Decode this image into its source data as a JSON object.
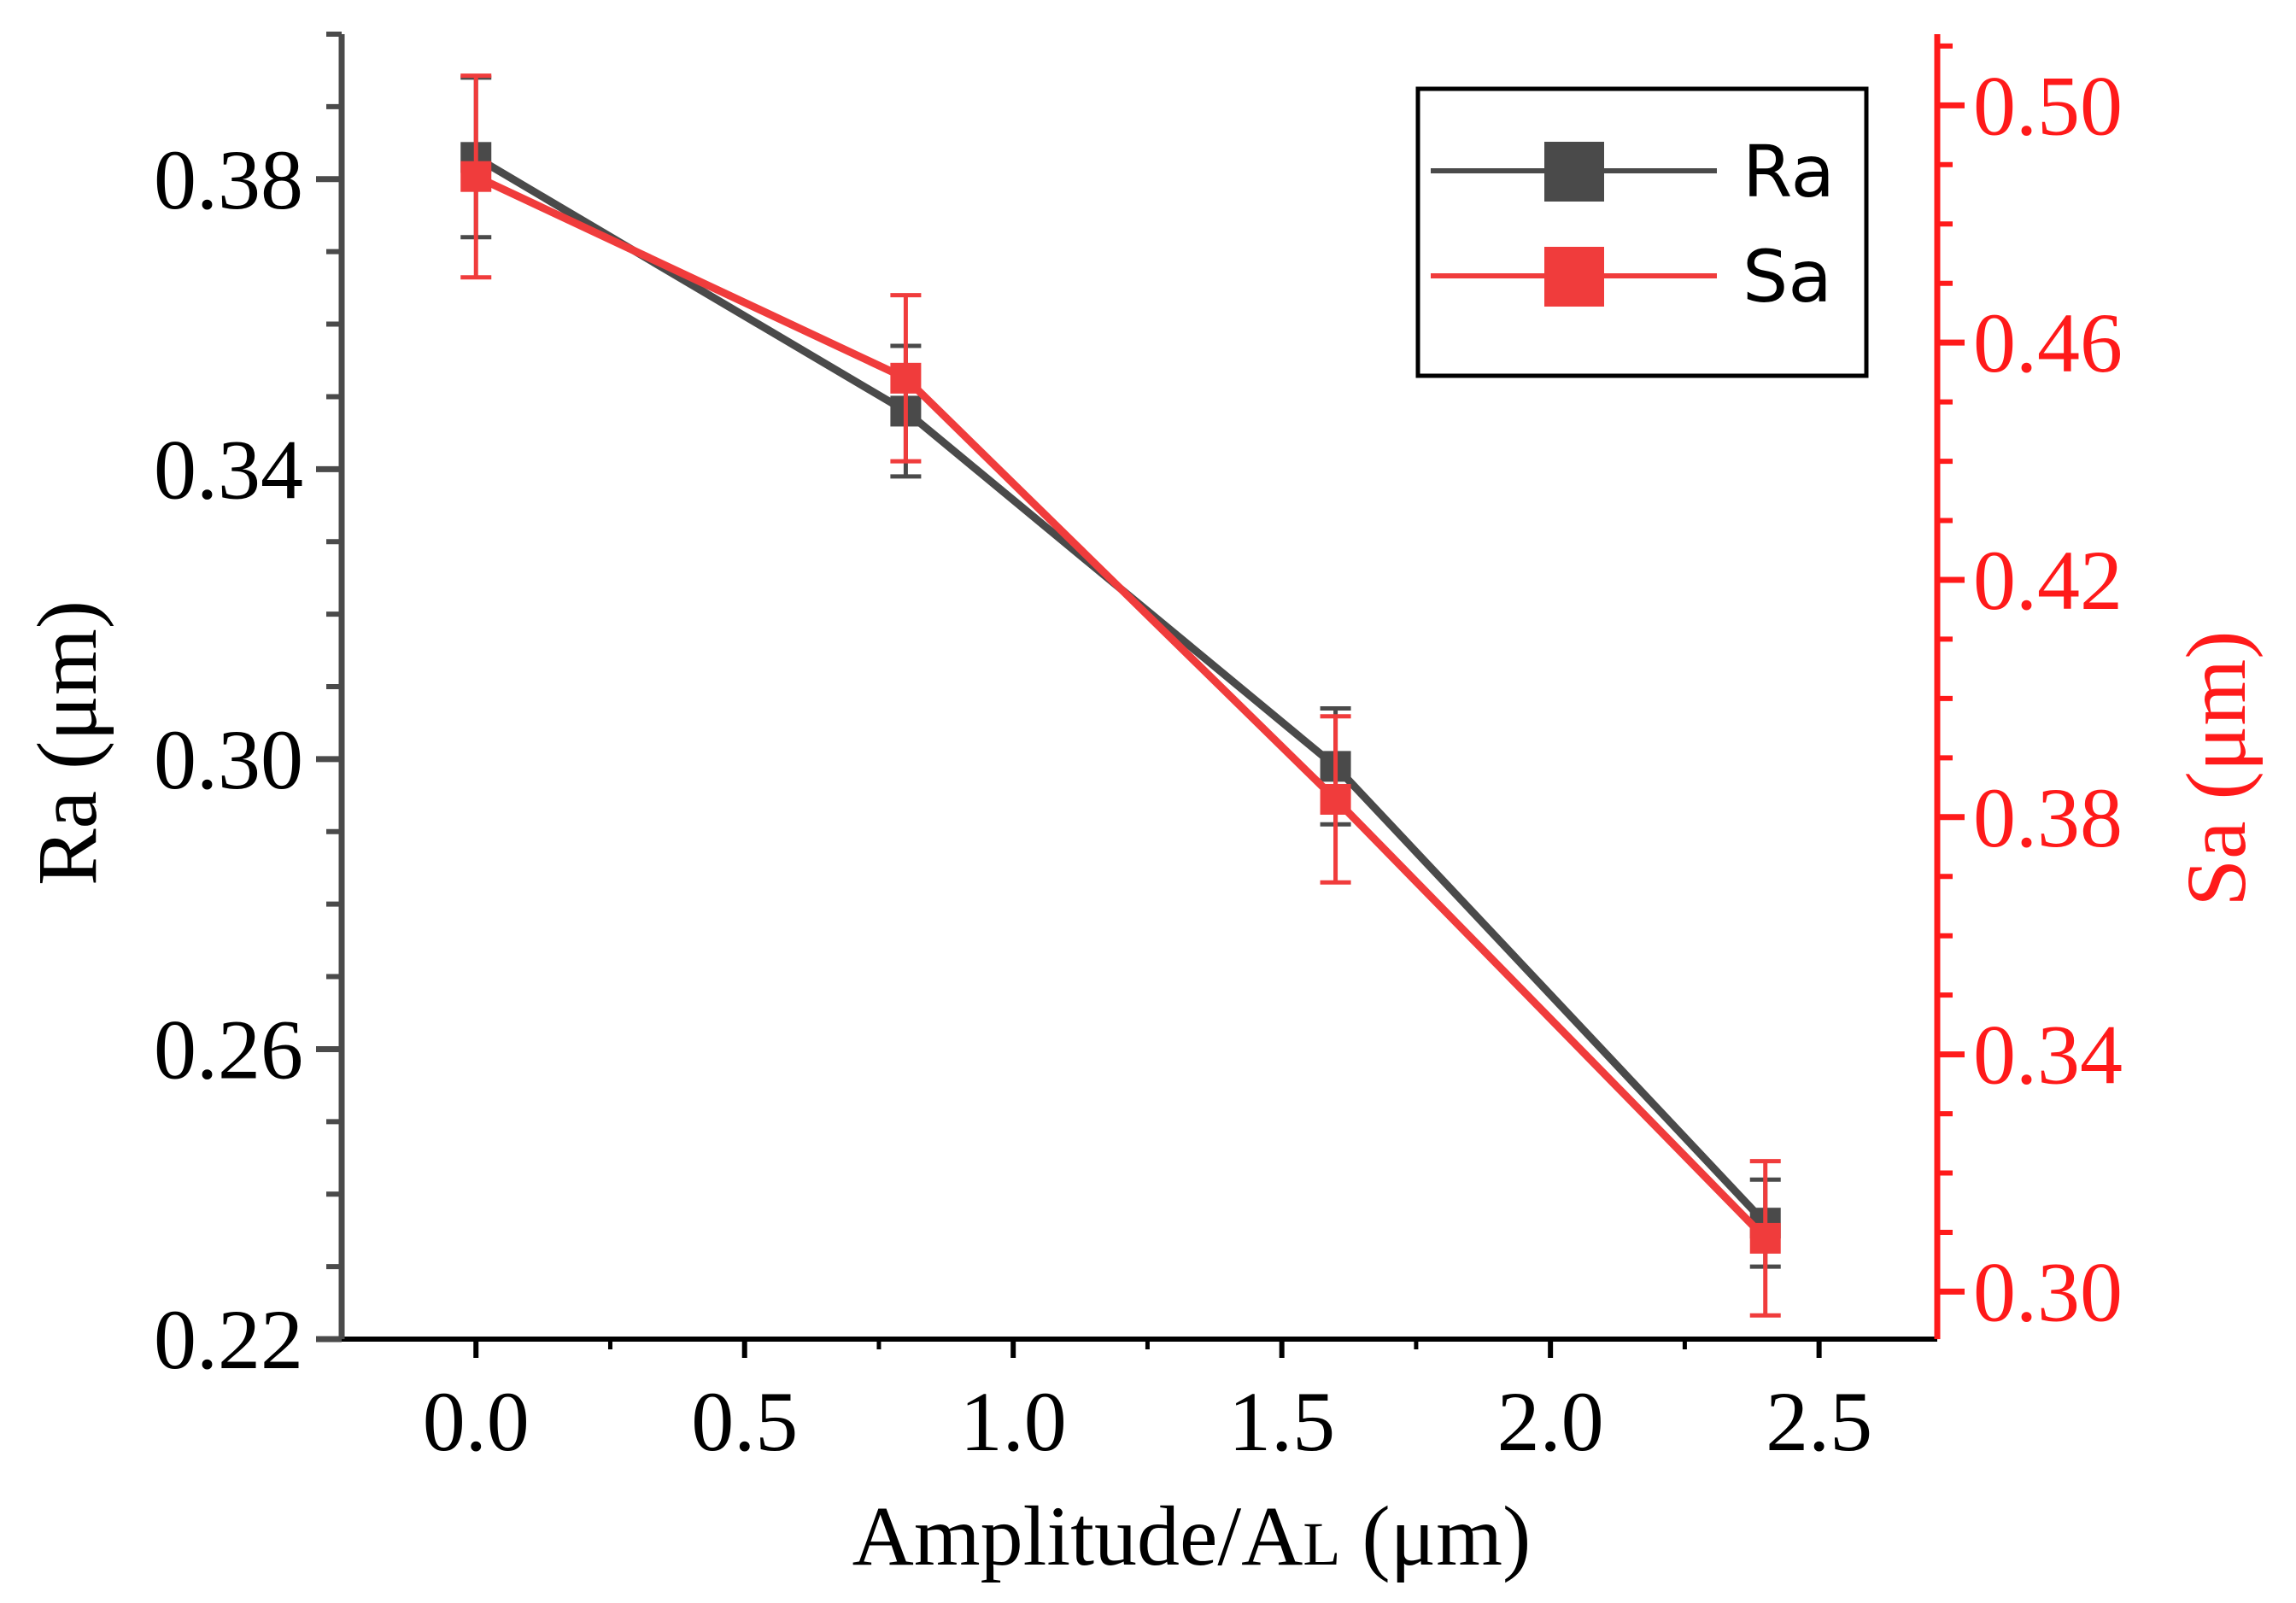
{
  "chart_data": {
    "type": "line",
    "title": "",
    "x": [
      0.0,
      0.8,
      1.6,
      2.4
    ],
    "xlabel": "Amplitude/AL (μm)",
    "xlabel_main": "Amplitude/A",
    "xlabel_sub": "L",
    "xlabel_unit": " (μm)",
    "xlim": [
      -0.25,
      2.72
    ],
    "x_ticks": [
      0.0,
      0.5,
      1.0,
      1.5,
      2.0,
      2.5
    ],
    "x_tick_labels": [
      "0.0",
      "0.5",
      "1.0",
      "1.5",
      "2.0",
      "2.5"
    ],
    "ylabel": "Ra (μm)",
    "ylim": [
      0.22,
      0.4
    ],
    "y_ticks": [
      0.22,
      0.26,
      0.3,
      0.34,
      0.38
    ],
    "y_tick_labels": [
      "0.22",
      "0.26",
      "0.30",
      "0.34",
      "0.38"
    ],
    "y2label": "Sa (μm)",
    "y2lim": [
      0.292,
      0.512
    ],
    "y2_ticks": [
      0.3,
      0.34,
      0.38,
      0.42,
      0.46,
      0.5
    ],
    "y2_tick_labels": [
      "0.30",
      "0.34",
      "0.38",
      "0.42",
      "0.46",
      "0.50"
    ],
    "legend_position": "top-right",
    "series": [
      {
        "name": "Ra",
        "axis": "left",
        "color": "#4a4a4a",
        "values": [
          0.383,
          0.348,
          0.299,
          0.236
        ],
        "errors": [
          0.011,
          0.009,
          0.008,
          0.006
        ]
      },
      {
        "name": "Sa",
        "axis": "right",
        "color": "#f03c3c",
        "values": [
          0.488,
          0.454,
          0.383,
          0.309
        ],
        "errors": [
          0.017,
          0.014,
          0.014,
          0.013
        ]
      }
    ]
  },
  "colors": {
    "left_axis": "#4a4a4a",
    "right_axis": "#ff1a1a",
    "frame": "#000000",
    "background": "#ffffff"
  }
}
